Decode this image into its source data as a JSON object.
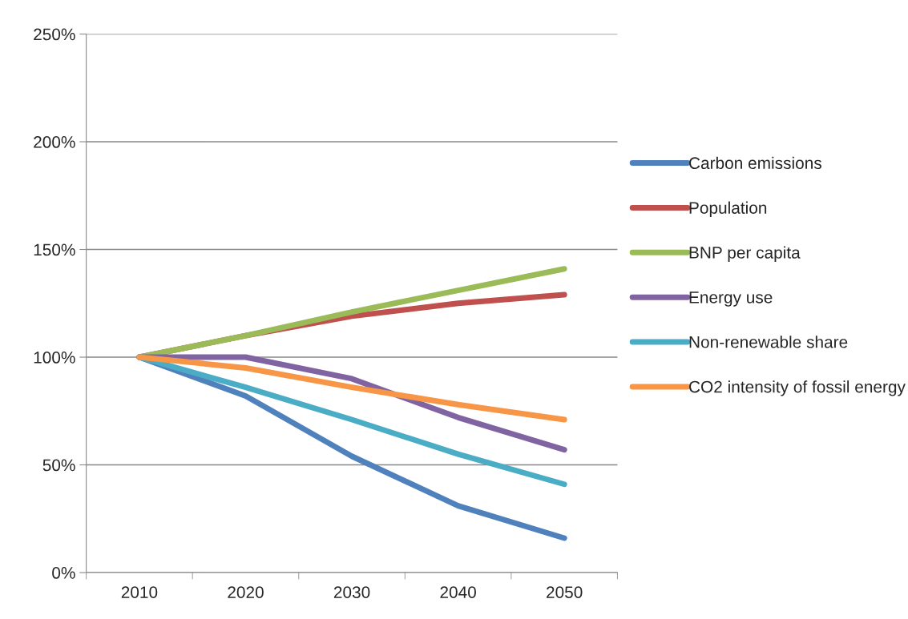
{
  "chart_data": {
    "type": "line",
    "categories": [
      "2010",
      "2020",
      "2030",
      "2040",
      "2050"
    ],
    "series": [
      {
        "name": "Carbon emissions",
        "color": "#4f81bd",
        "values": [
          100,
          82,
          54,
          31,
          16
        ]
      },
      {
        "name": "Population",
        "color": "#c0504d",
        "values": [
          100,
          110,
          119,
          125,
          129
        ]
      },
      {
        "name": "BNP per capita",
        "color": "#9bbb59",
        "values": [
          100,
          110,
          121,
          131,
          141
        ]
      },
      {
        "name": "Energy use",
        "color": "#8064a2",
        "values": [
          100,
          100,
          90,
          72,
          57
        ]
      },
      {
        "name": "Non-renewable share",
        "color": "#4bacc6",
        "values": [
          100,
          86,
          71,
          55,
          41
        ]
      },
      {
        "name": "CO2 intensity of fossil energy",
        "color": "#f79646",
        "values": [
          100,
          95,
          86,
          78,
          71
        ]
      }
    ],
    "ylim": [
      0,
      250
    ],
    "yticks": [
      {
        "value": 0,
        "label": "0%"
      },
      {
        "value": 50,
        "label": "50%"
      },
      {
        "value": 100,
        "label": "100%"
      },
      {
        "value": 150,
        "label": "150%"
      },
      {
        "value": 200,
        "label": "200%"
      },
      {
        "value": 250,
        "label": "250%"
      }
    ],
    "grid": "y",
    "legend": "right",
    "marker": "none",
    "line_style": "solid"
  }
}
